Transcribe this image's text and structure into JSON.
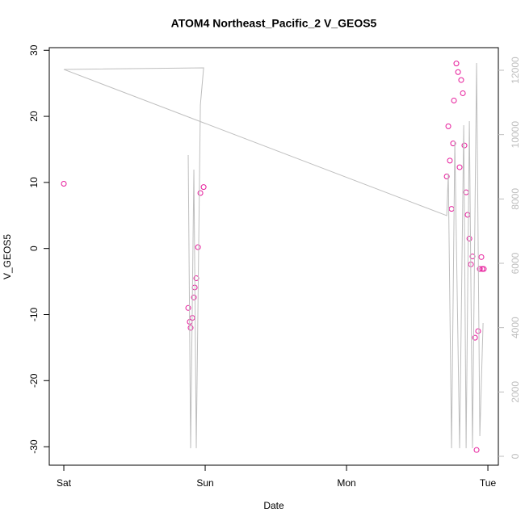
{
  "chart_data": {
    "type": "line",
    "title": "ATOM4 Northeast_Pacific_2 V_GEOS5",
    "x_label": "Date",
    "y_label": "V_GEOS5",
    "xlim": [
      -0.103,
      3.074
    ],
    "xticks": [
      {
        "value": 0,
        "label": "Sat"
      },
      {
        "value": 1,
        "label": "Sun"
      },
      {
        "value": 2,
        "label": "Mon"
      },
      {
        "value": 3,
        "label": "Tue"
      }
    ],
    "ylim": [
      -32.8,
      30.4
    ],
    "yticks": [
      -30,
      -20,
      -10,
      0,
      10,
      20,
      30
    ],
    "y2lim": [
      -276,
      12703
    ],
    "y2ticks": [
      0,
      2000,
      4000,
      6000,
      8000,
      10000,
      12000
    ],
    "y2_color": "#bebebe",
    "series": [
      {
        "style": "points",
        "color": "#e6199a",
        "x": [
          0,
          0.88,
          0.891,
          0.897,
          0.909,
          0.92,
          0.926,
          0.937,
          0.949,
          0.966,
          0.989,
          2.709,
          2.72,
          2.731,
          2.743,
          2.754,
          2.76,
          2.777,
          2.789,
          2.8,
          2.811,
          2.823,
          2.834,
          2.846,
          2.857,
          2.869,
          2.88,
          2.891,
          2.909,
          2.92,
          2.931,
          2.943,
          2.954,
          2.96,
          2.971
        ],
        "values": [
          9.8,
          -9.0,
          -11.1,
          -12.0,
          -10.5,
          -7.4,
          -5.9,
          -4.5,
          0.2,
          8.4,
          9.3,
          10.9,
          18.5,
          13.3,
          6.0,
          15.9,
          22.4,
          28.0,
          26.7,
          12.3,
          25.5,
          23.5,
          15.6,
          8.5,
          5.1,
          1.5,
          -2.4,
          -1.2,
          -13.5,
          -30.5,
          -12.5,
          -3.1,
          -1.3,
          -3.1,
          -3.1
        ]
      },
      {
        "style": "line",
        "color": "#bebebe",
        "axis": "y2",
        "x": [
          0.88,
          0.897,
          0.92,
          0.937,
          0.966,
          0.989,
          0,
          2.709,
          2.72,
          2.743,
          2.766,
          2.8,
          2.829,
          2.846,
          2.869,
          2.891,
          2.92,
          2.943,
          2.966
        ],
        "values": [
          9365,
          251,
          8913,
          251,
          10921,
          12076,
          12026,
          7482,
          8787,
          251,
          9792,
          251,
          10294,
          251,
          10419,
          251,
          12227,
          628,
          4143
        ]
      }
    ]
  }
}
